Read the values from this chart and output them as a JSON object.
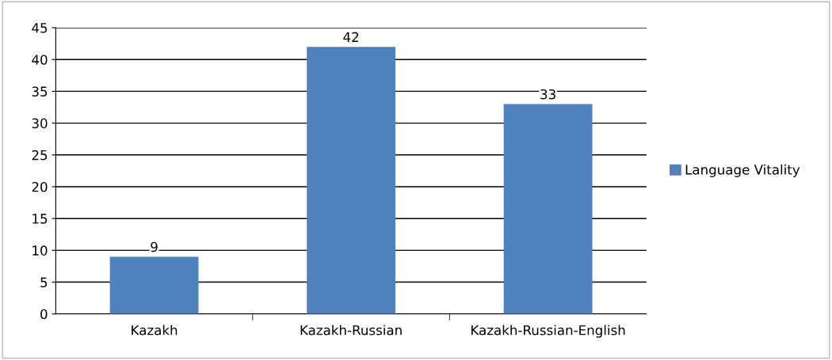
{
  "chart_data": {
    "type": "bar",
    "categories": [
      "Kazakh",
      "Kazakh-Russian",
      "Kazakh-Russian-English"
    ],
    "series": [
      {
        "name": "Language Vitality",
        "color": "#4f81bd",
        "values": [
          9,
          42,
          33
        ]
      }
    ],
    "ylim": [
      0,
      45
    ],
    "yticks": [
      0,
      5,
      10,
      15,
      20,
      25,
      30,
      35,
      40,
      45
    ],
    "grid": "y",
    "legend": "right",
    "data_labels": true
  }
}
